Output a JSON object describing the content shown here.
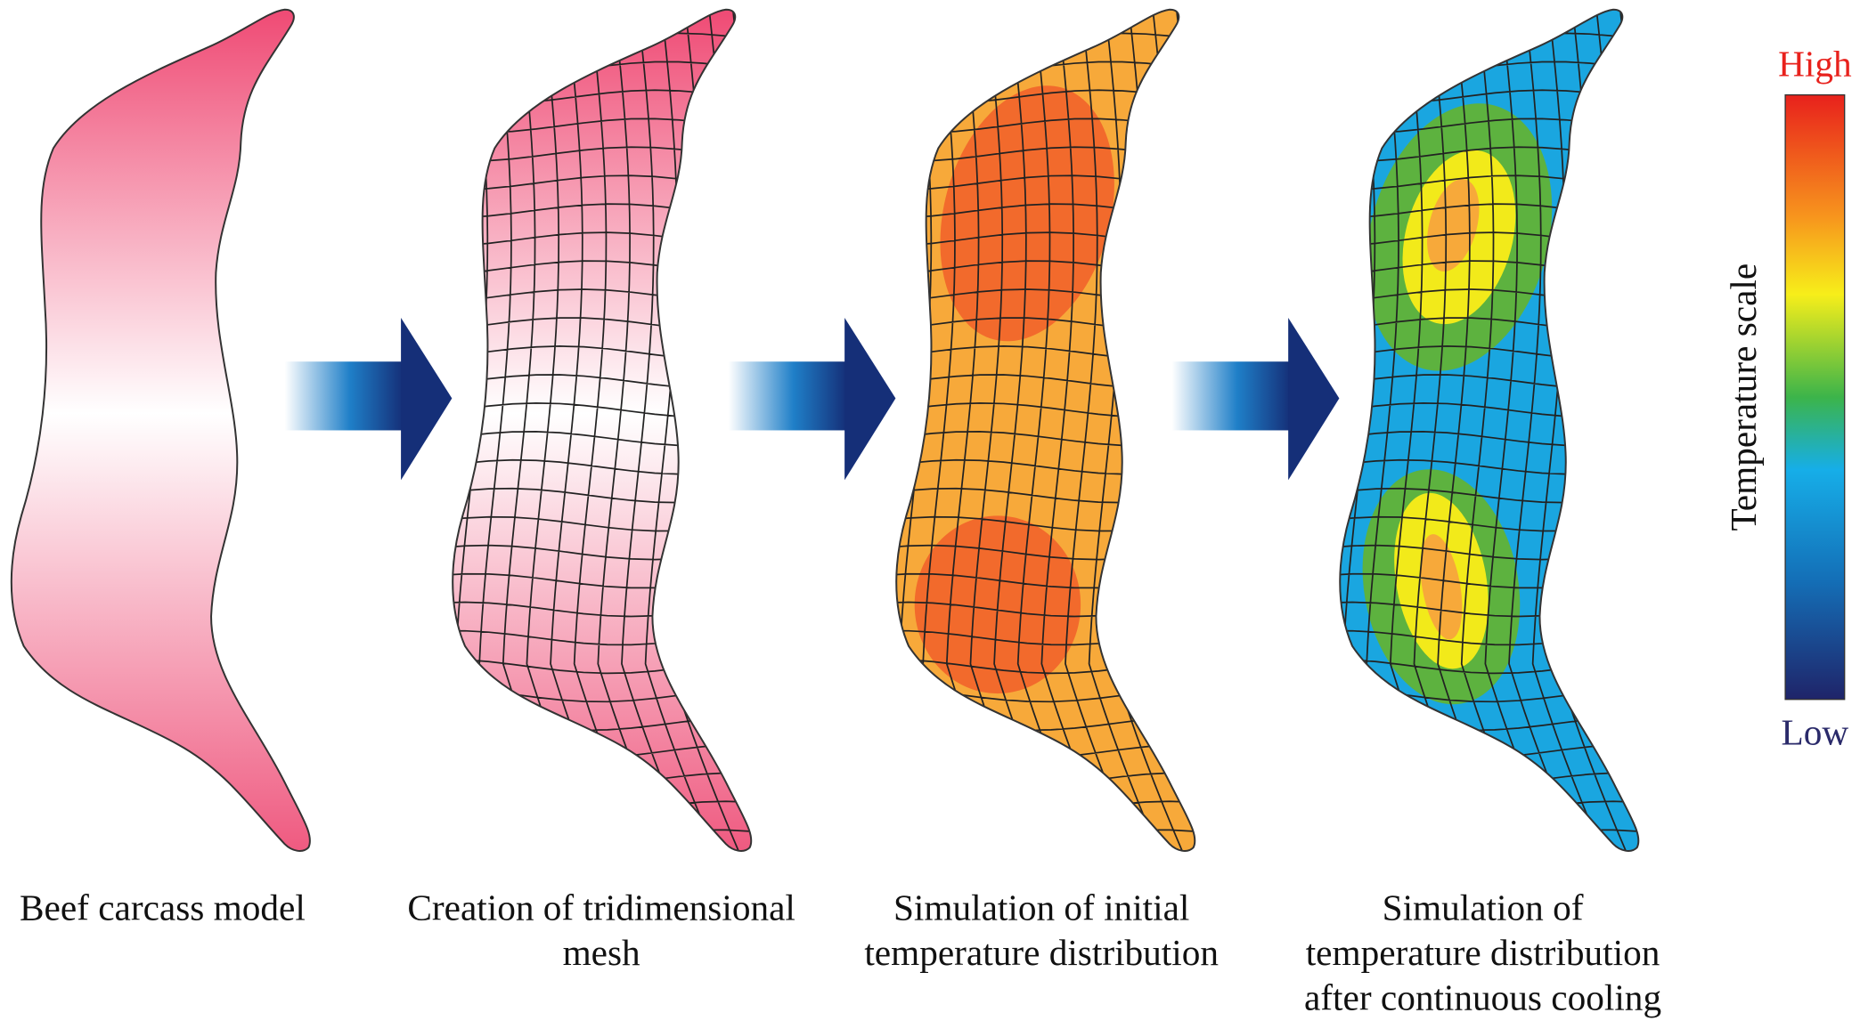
{
  "panels": [
    {
      "caption": [
        "Beef carcass model"
      ]
    },
    {
      "caption": [
        "Creation of tridimensional",
        "mesh"
      ]
    },
    {
      "caption": [
        "Simulation of initial",
        "temperature distribution"
      ]
    },
    {
      "caption": [
        "Simulation of",
        "temperature distribution",
        "after continuous cooling"
      ]
    }
  ],
  "legend": {
    "title": "Temperature scale",
    "high": "High",
    "low": "Low"
  }
}
